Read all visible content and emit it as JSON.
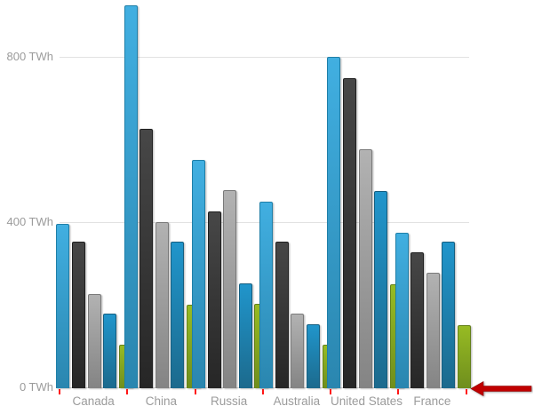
{
  "chart_data": {
    "type": "bar",
    "title": "",
    "xlabel": "",
    "ylabel": "",
    "unit": "TWh",
    "grid": "horizontal",
    "legend": "none",
    "categories": [
      "Canada",
      "China",
      "Russia",
      "Australia",
      "United States",
      "France"
    ],
    "series": [
      {
        "name": "series-1-light-blue",
        "color_top": "#41afe1",
        "color_bottom": "#2a86af",
        "border_color": "#1f7fa8",
        "values": [
          395,
          925,
          550,
          450,
          800,
          375
        ]
      },
      {
        "name": "series-2-dark-gray",
        "color_top": "#474747",
        "color_bottom": "#262626",
        "border_color": "#1f1f1f",
        "values": [
          352,
          625,
          425,
          352,
          748,
          327
        ]
      },
      {
        "name": "series-3-gray",
        "color_top": "#b2b2b2",
        "color_bottom": "#848484",
        "border_color": "#7a7a7a",
        "values": [
          225,
          400,
          477,
          178,
          576,
          277
        ]
      },
      {
        "name": "series-4-blue",
        "color_top": "#2095cb",
        "color_bottom": "#1c6a8d",
        "border_color": "#155e80",
        "values": [
          178,
          352,
          252,
          152,
          475,
          352
        ]
      },
      {
        "name": "series-5-green",
        "color_top": "#97bb23",
        "color_bottom": "#6f8e1d",
        "border_color": "#64801a",
        "values": [
          103,
          200,
          202,
          103,
          250,
          150
        ]
      }
    ],
    "y_axis": {
      "tick_labels": [
        "0 TWh",
        "400 TWh",
        "800 TWh"
      ],
      "tick_values": [
        0,
        400,
        800
      ],
      "ylim": [
        0,
        937
      ],
      "label_color": "#9b9b9b",
      "gridline_color": "#e2e2e2"
    },
    "x_axis": {
      "tick_color": "#ff1616",
      "label_color": "#9b9b9b"
    },
    "annotation": {
      "type": "arrow",
      "direction": "left",
      "color": "#c00000",
      "location": "right end of x-axis"
    }
  }
}
